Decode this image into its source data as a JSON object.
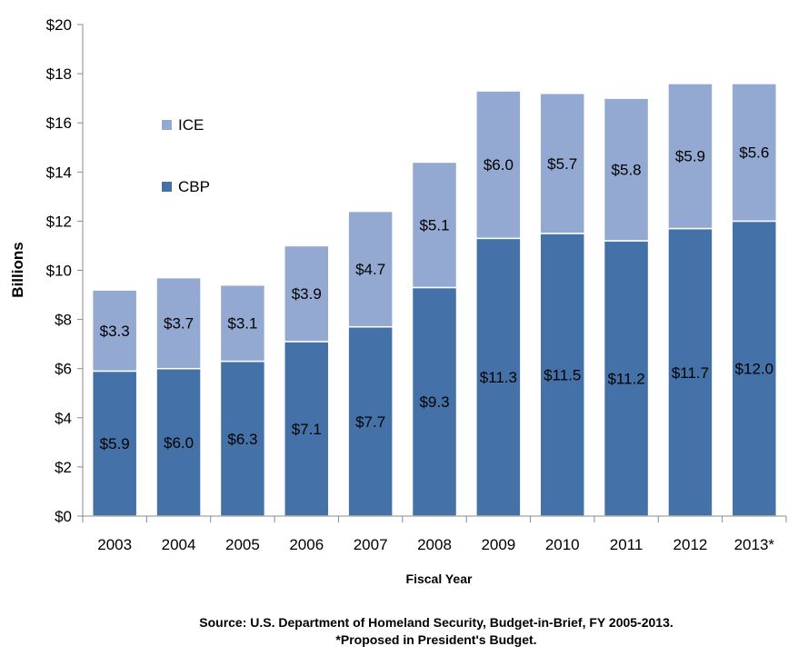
{
  "chart_data": {
    "type": "bar",
    "stacked": true,
    "categories": [
      "2003",
      "2004",
      "2005",
      "2006",
      "2007",
      "2008",
      "2009",
      "2010",
      "2011",
      "2012",
      "2013*"
    ],
    "series": [
      {
        "name": "CBP",
        "color": "#4472a8",
        "values": [
          5.9,
          6.0,
          6.3,
          7.1,
          7.7,
          9.3,
          11.3,
          11.5,
          11.2,
          11.7,
          12.0
        ],
        "labels": [
          "$5.9",
          "$6.0",
          "$6.3",
          "$7.1",
          "$7.7",
          "$9.3",
          "$11.3",
          "$11.5",
          "$11.2",
          "$11.7",
          "$12.0"
        ]
      },
      {
        "name": "ICE",
        "color": "#93a9d2",
        "values": [
          3.3,
          3.7,
          3.1,
          3.9,
          4.7,
          5.1,
          6.0,
          5.7,
          5.8,
          5.9,
          5.6
        ],
        "labels": [
          "$3.3",
          "$3.7",
          "$3.1",
          "$3.9",
          "$4.7",
          "$5.1",
          "$6.0",
          "$5.7",
          "$5.8",
          "$5.9",
          "$5.6"
        ]
      }
    ],
    "ylim": [
      0,
      20
    ],
    "yticks": [
      0,
      2,
      4,
      6,
      8,
      10,
      12,
      14,
      16,
      18,
      20
    ],
    "ytick_labels": [
      "$0",
      "$2",
      "$4",
      "$6",
      "$8",
      "$10",
      "$12",
      "$14",
      "$16",
      "$18",
      "$20"
    ],
    "ylabel": "Billions",
    "xlabel": "Fiscal Year",
    "grid": false,
    "legend_position": "top-left"
  },
  "footer": {
    "source": "Source: U.S. Department of Homeland Security, Budget-in-Brief, FY 2005-2013.",
    "note": "*Proposed in President's Budget."
  }
}
